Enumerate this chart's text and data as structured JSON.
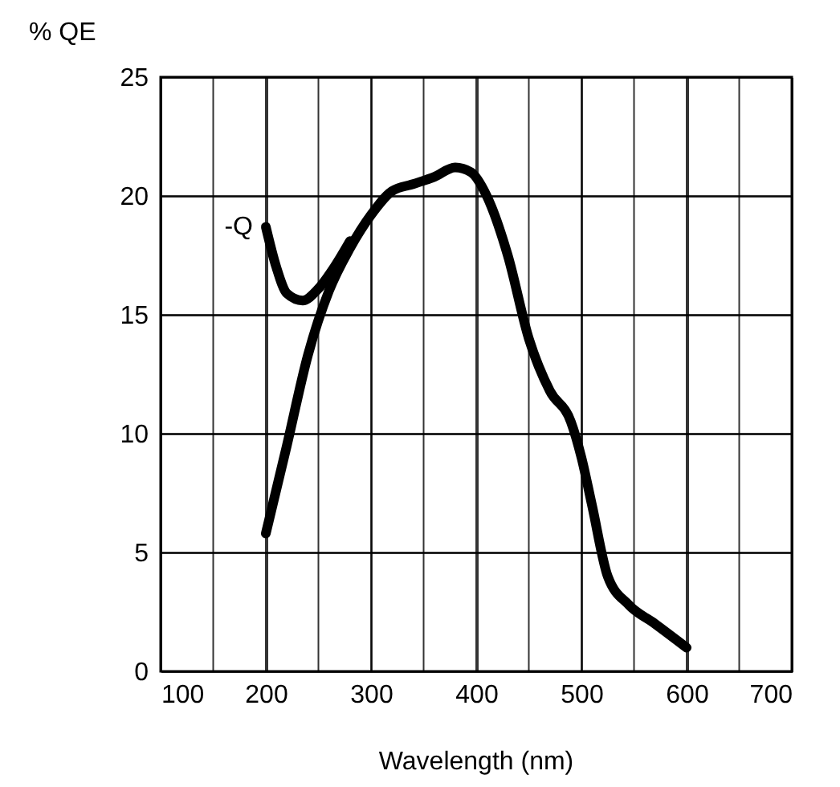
{
  "chart_data": {
    "type": "line",
    "ylabel": "% QE",
    "xlabel": "Wavelength (nm)",
    "xlim": [
      100,
      700
    ],
    "ylim": [
      0,
      25
    ],
    "xticks": [
      100,
      {
        "value": 150,
        "label": null
      },
      200,
      {
        "value": 250,
        "label": null
      },
      300,
      {
        "value": 350,
        "label": null
      },
      400,
      {
        "value": 450,
        "label": null
      },
      500,
      {
        "value": 550,
        "label": null
      },
      600,
      {
        "value": 650,
        "label": null
      },
      700
    ],
    "yticks": [
      0,
      5,
      10,
      15,
      20,
      25
    ],
    "grid": true,
    "marker": "none",
    "line_style": "solid",
    "series": [
      {
        "color": "#000000",
        "x": [
          200,
          220,
          240,
          260,
          280,
          300,
          320,
          340,
          360,
          380,
          395,
          410,
          430,
          450,
          470,
          490,
          500,
          510,
          525,
          545,
          570,
          600
        ],
        "values": [
          5.8,
          9.5,
          13.3,
          16,
          17.8,
          19.2,
          20.2,
          20.5,
          20.8,
          21.2,
          21,
          20,
          17.5,
          14,
          11.8,
          10.5,
          9,
          7,
          4,
          2.8,
          2,
          1
        ]
      },
      {
        "name": "-Q",
        "color": "#000000",
        "x": [
          200,
          210,
          220,
          235,
          250,
          265,
          280
        ],
        "values": [
          18.7,
          17,
          15.9,
          15.6,
          16.1,
          17,
          18.1
        ]
      }
    ]
  }
}
